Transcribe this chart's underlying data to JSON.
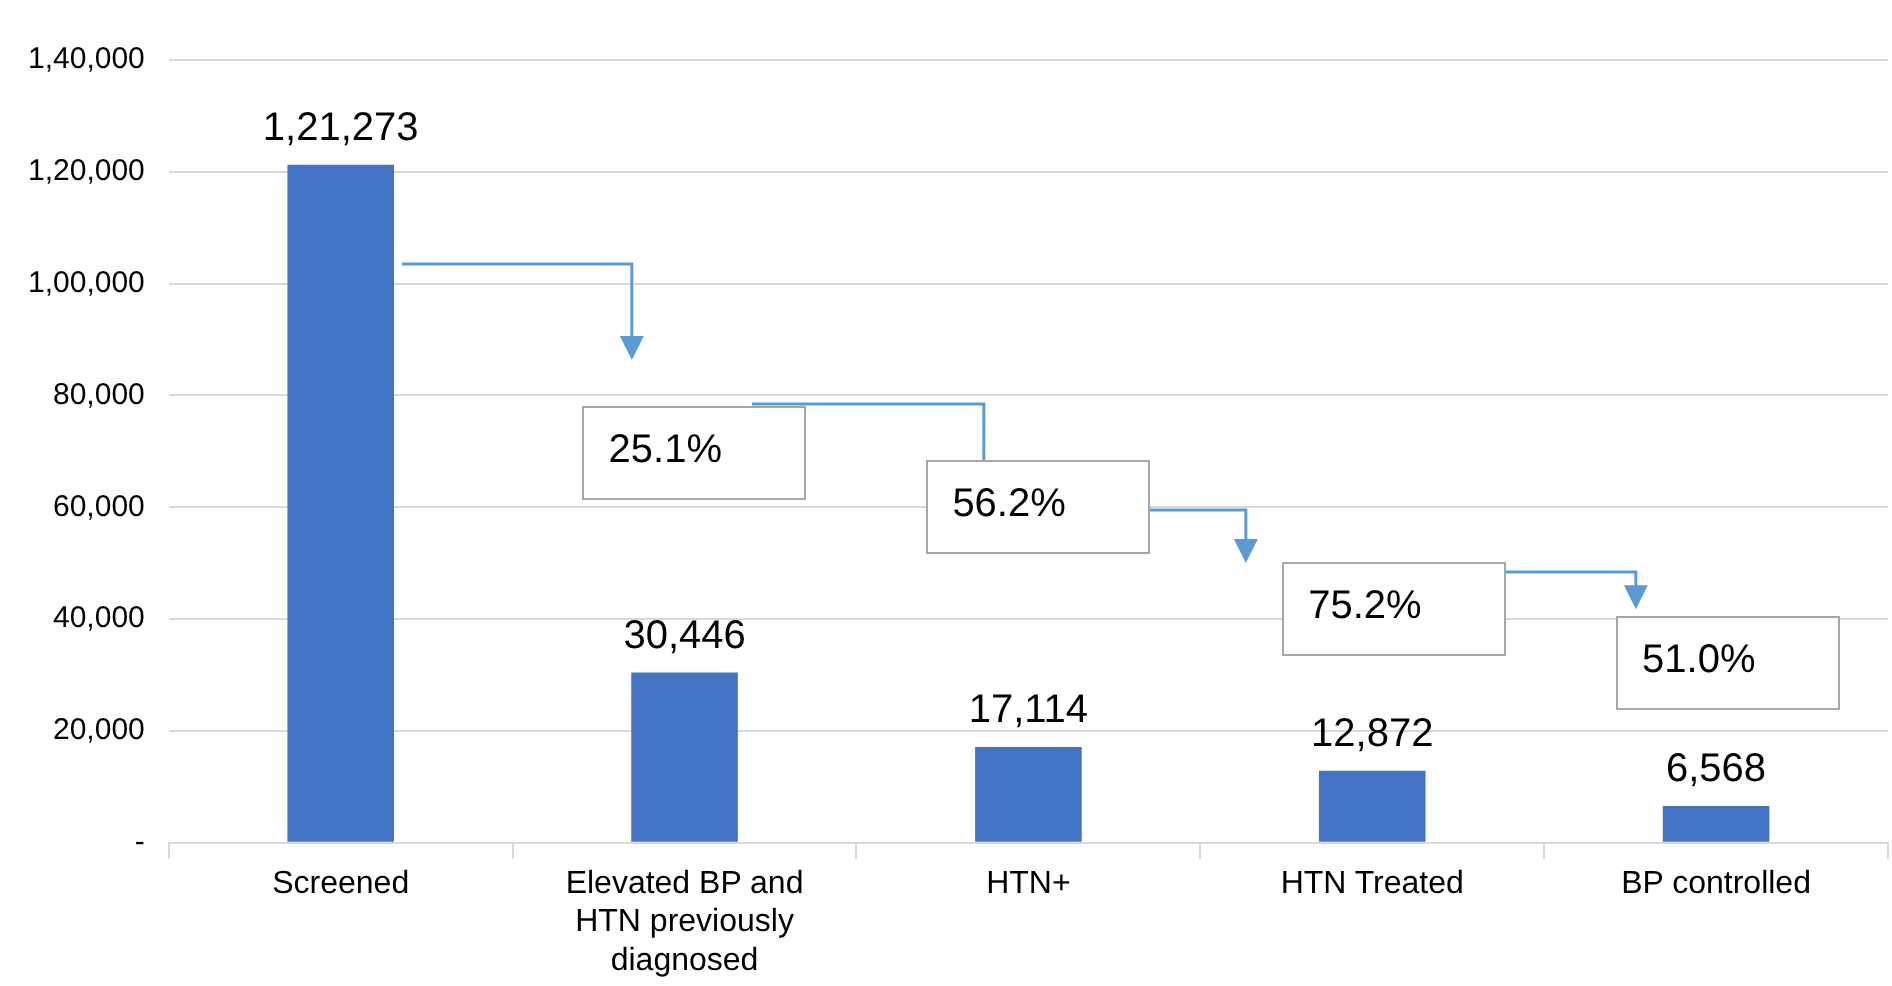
{
  "chart_data": {
    "type": "bar",
    "categories": [
      "Screened",
      "Elevated BP and HTN previously diagnosed",
      "HTN+",
      "HTN Treated",
      "BP controlled"
    ],
    "values": [
      121273,
      30446,
      17114,
      12872,
      6568
    ],
    "value_labels": [
      "1,21,273",
      "30,446",
      "17,114",
      "12,872",
      "6,568"
    ],
    "color": "#4472c4",
    "ylim": [
      0,
      140000
    ],
    "yticks": [
      {
        "value": 0,
        "label": "-"
      },
      {
        "value": 20000,
        "label": "20,000"
      },
      {
        "value": 40000,
        "label": "40,000"
      },
      {
        "value": 60000,
        "label": "60,000"
      },
      {
        "value": 80000,
        "label": "80,000"
      },
      {
        "value": 100000,
        "label": "1,00,000"
      },
      {
        "value": 120000,
        "label": "1,20,000"
      },
      {
        "value": 140000,
        "label": "1,40,000"
      }
    ],
    "annotations": [
      "25.1%",
      "56.2%",
      "75.2%",
      "51.0%"
    ],
    "grid": "y",
    "legend": false
  }
}
